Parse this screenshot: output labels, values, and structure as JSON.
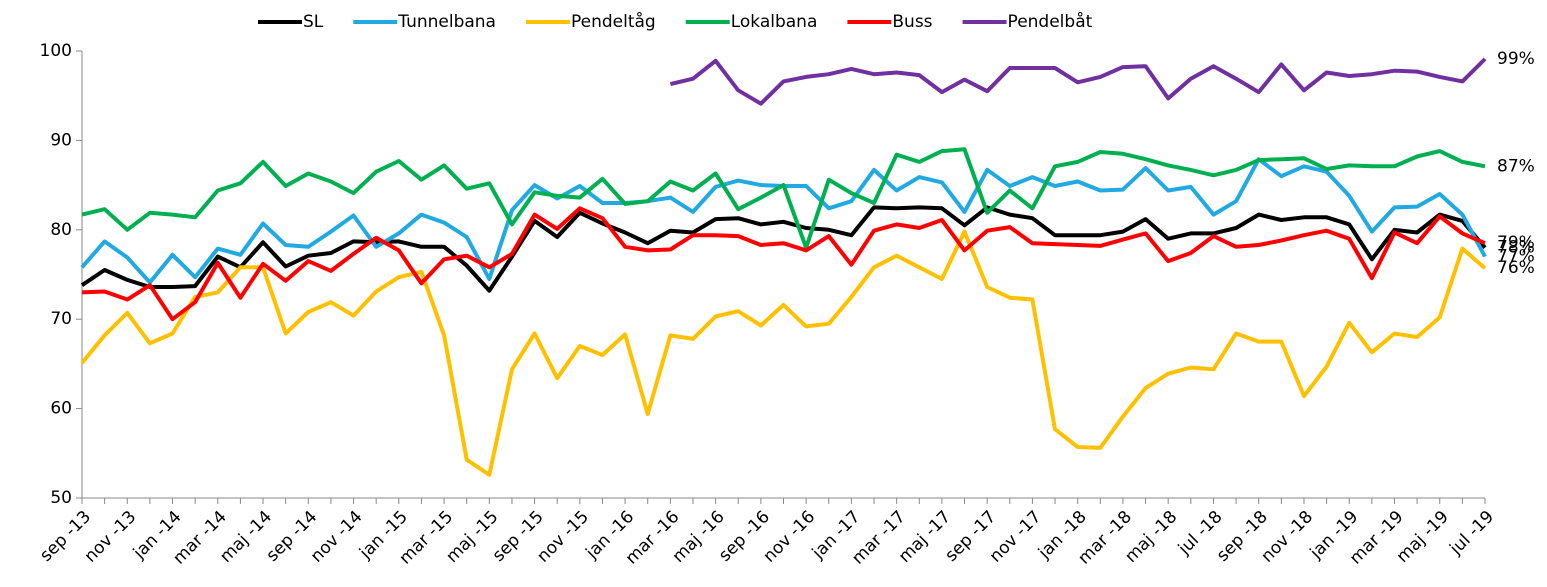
{
  "chart_data": {
    "type": "line",
    "categories": [
      "sep -13",
      null,
      "nov -13",
      null,
      "jan -14",
      null,
      "mar -14",
      null,
      "maj -14",
      null,
      "sep -14",
      null,
      "nov -14",
      null,
      "jan -15",
      null,
      "mar -15",
      null,
      "maj -15",
      null,
      "sep -15",
      null,
      "nov -15",
      null,
      "jan -16",
      null,
      "mar -16",
      null,
      "maj -16",
      null,
      "sep -16",
      null,
      "nov -16",
      null,
      "jan -17",
      null,
      "mar -17",
      null,
      "maj -17",
      null,
      "sep -17",
      null,
      "nov -17",
      null,
      "jan -18",
      null,
      "mar -18",
      null,
      "maj -18",
      null,
      "jul -18",
      null,
      "sep -18",
      null,
      "nov -18",
      null,
      "jan -19",
      null,
      "mar -19",
      null,
      "maj -19",
      null,
      "jul -19"
    ],
    "ylim": [
      50,
      100
    ],
    "yticks": [
      50,
      60,
      70,
      80,
      90,
      100
    ],
    "grid": false,
    "legend": "top",
    "series": [
      {
        "name": "SL",
        "color": "#000000",
        "end_label": "78%",
        "values": [
          73.8,
          75.5,
          74.4,
          73.6,
          73.6,
          73.7,
          77.0,
          75.8,
          78.6,
          75.9,
          77.1,
          77.4,
          78.7,
          78.6,
          78.7,
          78.1,
          78.1,
          76.0,
          73.2,
          77.0,
          81.0,
          79.2,
          81.9,
          80.7,
          79.7,
          78.5,
          79.9,
          79.7,
          81.2,
          81.3,
          80.6,
          80.9,
          80.2,
          80.0,
          79.4,
          82.5,
          82.4,
          82.5,
          82.4,
          80.5,
          82.5,
          81.7,
          81.3,
          79.4,
          79.4,
          79.4,
          79.8,
          81.2,
          79.0,
          79.6,
          79.6,
          80.2,
          81.7,
          81.1,
          81.4,
          81.4,
          80.6,
          76.7,
          80.0,
          79.7,
          81.7,
          81.0,
          78.0
        ]
      },
      {
        "name": "Tunnelbana",
        "color": "#21a9e1",
        "end_label": "77%",
        "values": [
          75.8,
          78.7,
          76.9,
          74.1,
          77.2,
          74.7,
          77.9,
          77.2,
          80.7,
          78.3,
          78.1,
          79.8,
          81.6,
          78.1,
          79.6,
          81.7,
          80.8,
          79.2,
          74.5,
          82.2,
          85.0,
          83.5,
          84.9,
          83.0,
          83.0,
          83.2,
          83.6,
          82.0,
          84.8,
          85.5,
          85.0,
          84.9,
          84.9,
          82.4,
          83.2,
          86.7,
          84.4,
          85.9,
          85.3,
          82.0,
          86.7,
          84.9,
          85.9,
          84.9,
          85.4,
          84.4,
          84.5,
          86.9,
          84.4,
          84.8,
          81.7,
          83.2,
          87.9,
          86.0,
          87.1,
          86.5,
          83.8,
          79.8,
          82.5,
          82.6,
          84.0,
          81.7,
          77.0
        ]
      },
      {
        "name": "Pendeltåg",
        "color": "#ffc000",
        "end_label": "76%",
        "values": [
          65.1,
          68.2,
          70.7,
          67.3,
          68.4,
          72.5,
          73.0,
          75.8,
          75.8,
          68.4,
          70.8,
          71.9,
          70.4,
          73.1,
          74.7,
          75.3,
          68.2,
          54.3,
          52.6,
          64.4,
          68.4,
          63.4,
          67.0,
          66.0,
          68.3,
          59.4,
          68.2,
          67.8,
          70.3,
          70.9,
          69.3,
          71.6,
          69.2,
          69.5,
          72.5,
          75.8,
          77.1,
          75.8,
          74.5,
          79.8,
          73.6,
          72.4,
          72.2,
          57.7,
          55.7,
          55.6,
          59.1,
          62.3,
          63.9,
          64.6,
          64.4,
          68.4,
          67.5,
          67.5,
          61.4,
          64.7,
          69.6,
          66.3,
          68.4,
          68.0,
          70.2,
          77.9,
          75.7
        ]
      },
      {
        "name": "Lokalbana",
        "color": "#00b050",
        "end_label": "87%",
        "values": [
          81.7,
          82.3,
          80.0,
          81.9,
          81.7,
          81.4,
          84.4,
          85.2,
          87.6,
          84.9,
          86.3,
          85.4,
          84.1,
          86.5,
          87.7,
          85.6,
          87.2,
          84.6,
          85.2,
          80.6,
          84.2,
          83.8,
          83.6,
          85.7,
          82.9,
          83.2,
          85.4,
          84.4,
          86.3,
          82.3,
          83.6,
          85.0,
          78.0,
          85.6,
          84.1,
          83.0,
          88.4,
          87.6,
          88.8,
          89.0,
          81.9,
          84.4,
          82.4,
          87.1,
          87.6,
          88.7,
          88.5,
          87.9,
          87.2,
          86.7,
          86.1,
          86.7,
          87.8,
          87.9,
          88.0,
          86.8,
          87.2,
          87.1,
          87.1,
          88.2,
          88.8,
          87.6,
          87.1
        ]
      },
      {
        "name": "Buss",
        "color": "#ff0000",
        "end_label": "79%",
        "values": [
          73.0,
          73.1,
          72.2,
          73.8,
          70.0,
          71.9,
          76.3,
          72.4,
          76.2,
          74.3,
          76.5,
          75.4,
          77.3,
          79.1,
          77.7,
          74.0,
          76.7,
          77.1,
          75.8,
          77.3,
          81.7,
          80.1,
          82.4,
          81.3,
          78.1,
          77.7,
          77.8,
          79.4,
          79.4,
          79.3,
          78.3,
          78.5,
          77.7,
          79.3,
          76.1,
          79.9,
          80.6,
          80.2,
          81.1,
          77.7,
          79.9,
          80.3,
          78.5,
          78.4,
          78.3,
          78.2,
          78.9,
          79.6,
          76.5,
          77.4,
          79.3,
          78.1,
          78.3,
          78.8,
          79.4,
          79.9,
          79.0,
          74.6,
          79.7,
          78.5,
          81.5,
          79.6,
          78.5
        ]
      },
      {
        "name": "Pendelbåt",
        "color": "#7030a0",
        "end_label": "99%",
        "values": [
          null,
          null,
          null,
          null,
          null,
          null,
          null,
          null,
          null,
          null,
          null,
          null,
          null,
          null,
          null,
          null,
          null,
          null,
          null,
          null,
          null,
          null,
          null,
          null,
          null,
          null,
          96.3,
          96.9,
          98.9,
          95.6,
          94.1,
          96.6,
          97.1,
          97.4,
          98.0,
          97.4,
          97.6,
          97.3,
          95.4,
          96.8,
          95.5,
          98.1,
          98.1,
          98.1,
          96.5,
          97.1,
          98.2,
          98.3,
          94.7,
          96.9,
          98.3,
          96.9,
          95.4,
          98.5,
          95.6,
          97.6,
          97.2,
          97.4,
          97.8,
          97.7,
          97.1,
          96.6,
          99.1
        ]
      }
    ]
  }
}
